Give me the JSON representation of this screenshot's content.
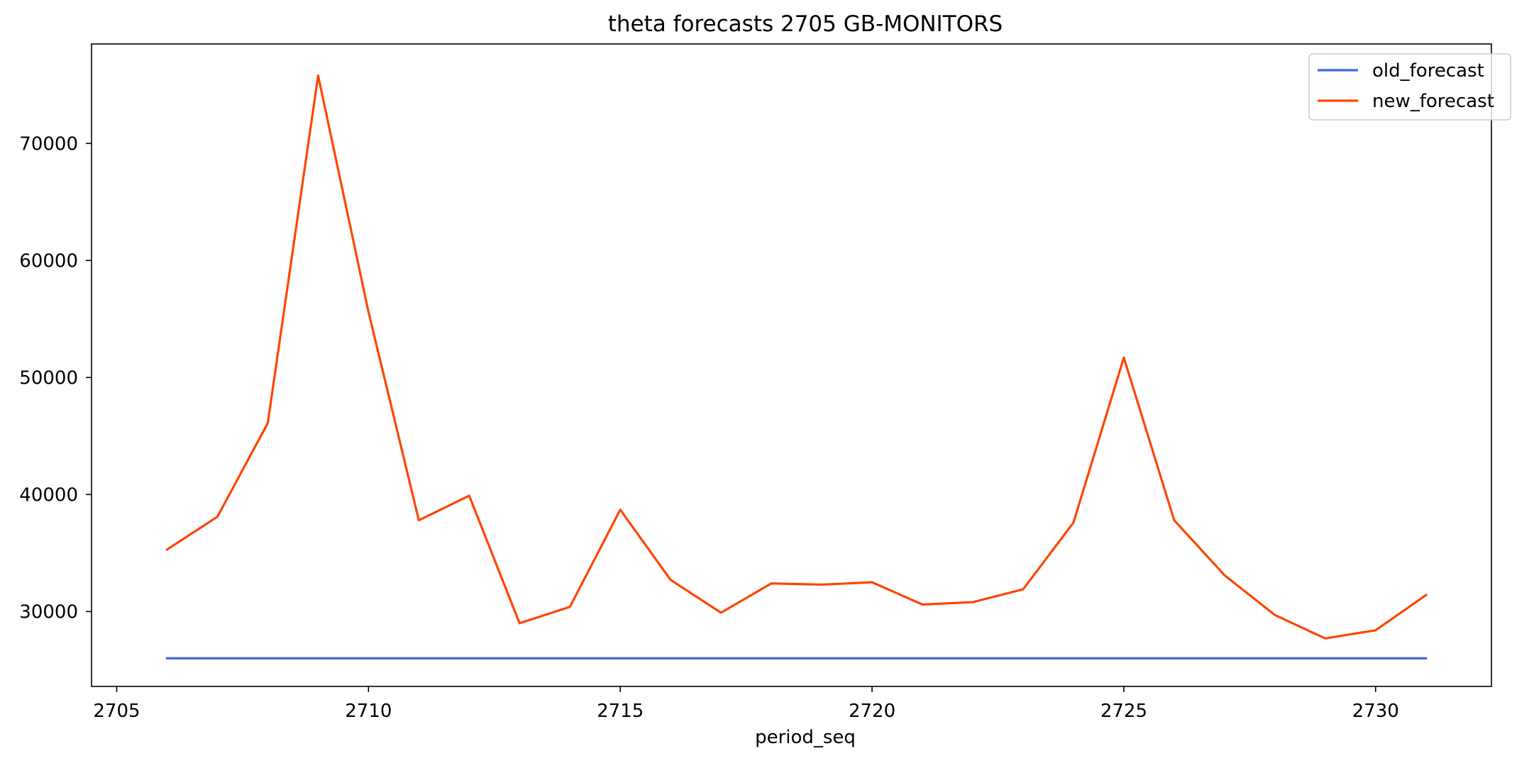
{
  "chart_data": {
    "type": "line",
    "title": "theta forecasts 2705 GB-MONITORS",
    "xlabel": "period_seq",
    "ylabel": "",
    "xlim": [
      2704.5,
      2732.3
    ],
    "ylim": [
      23600,
      78500
    ],
    "xticks": [
      2705,
      2710,
      2715,
      2720,
      2725,
      2730
    ],
    "yticks": [
      30000,
      40000,
      50000,
      60000,
      70000
    ],
    "grid": false,
    "legend_position": "top-right",
    "x": [
      2706,
      2707,
      2708,
      2709,
      2710,
      2711,
      2712,
      2713,
      2714,
      2715,
      2716,
      2717,
      2718,
      2719,
      2720,
      2721,
      2722,
      2723,
      2724,
      2725,
      2726,
      2727,
      2728,
      2729,
      2730,
      2731
    ],
    "series": [
      {
        "name": "old_forecast",
        "color": "#4169e1",
        "values": [
          26000,
          26000,
          26000,
          26000,
          26000,
          26000,
          26000,
          26000,
          26000,
          26000,
          26000,
          26000,
          26000,
          26000,
          26000,
          26000,
          26000,
          26000,
          26000,
          26000,
          26000,
          26000,
          26000,
          26000,
          26000,
          26000
        ]
      },
      {
        "name": "new_forecast",
        "color": "#ff4500",
        "values": [
          35300,
          38100,
          46100,
          75800,
          55600,
          37800,
          39900,
          29000,
          30400,
          38700,
          32700,
          29900,
          32400,
          32300,
          32500,
          30600,
          30800,
          31900,
          37600,
          51700,
          37800,
          33100,
          29700,
          27700,
          28400,
          31400
        ]
      }
    ]
  }
}
